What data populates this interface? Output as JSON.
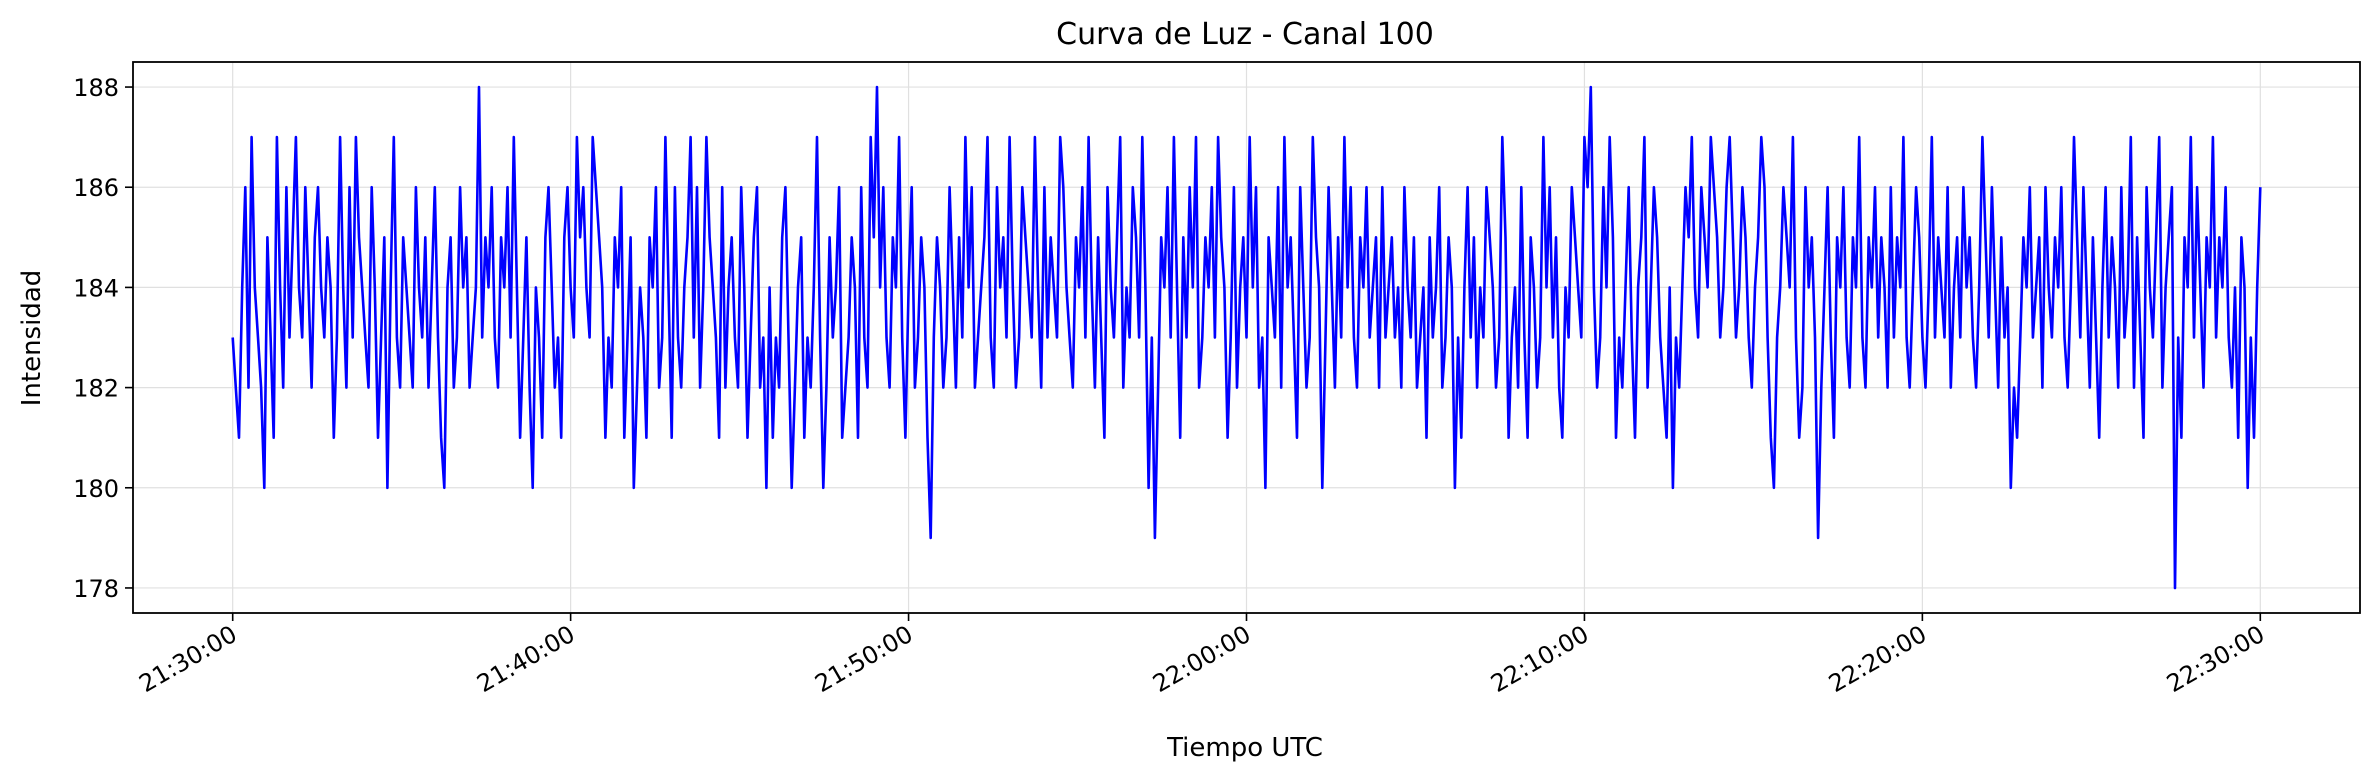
{
  "chart_data": {
    "type": "line",
    "title": "Curva de Luz - Canal 100",
    "xlabel": "Tiempo UTC",
    "ylabel": "Intensidad",
    "x_start": "21:30:00",
    "x_end": "22:30:00",
    "xlim": [
      "21:27:03",
      "22:32:57"
    ],
    "ylim": [
      177.5,
      188.5
    ],
    "x_ticks": [
      "21:30:00",
      "21:40:00",
      "21:50:00",
      "22:00:00",
      "22:10:00",
      "22:20:00",
      "22:30:00"
    ],
    "y_ticks": [
      178,
      180,
      182,
      184,
      186,
      188
    ],
    "grid": true,
    "series": [
      {
        "color": "#0000ff",
        "sample_interval_seconds": 10,
        "values": [
          183,
          182,
          181,
          184,
          186,
          182,
          187,
          184,
          183,
          182,
          180,
          185,
          183,
          181,
          187,
          184,
          182,
          186,
          183,
          185,
          187,
          184,
          183,
          186,
          184,
          182,
          185,
          186,
          184,
          183,
          185,
          184,
          181,
          183,
          187,
          184,
          182,
          186,
          183,
          187,
          185,
          184,
          183,
          182,
          186,
          184,
          181,
          183,
          185,
          180,
          184,
          187,
          183,
          182,
          185,
          184,
          183,
          182,
          186,
          184,
          183,
          185,
          182,
          184,
          186,
          183,
          181,
          180,
          184,
          185,
          182,
          183,
          186,
          184,
          185,
          182,
          183,
          184,
          188,
          183,
          185,
          184,
          186,
          183,
          182,
          185,
          184,
          186,
          183,
          187,
          184,
          181,
          183,
          185,
          182,
          180,
          184,
          183,
          181,
          185,
          186,
          184,
          182,
          183,
          181,
          185,
          186,
          184,
          183,
          187,
          185,
          186,
          184,
          183,
          187,
          186,
          185,
          184,
          181,
          183,
          182,
          185,
          184,
          186,
          181,
          183,
          185,
          180,
          182,
          184,
          183,
          181,
          185,
          184,
          186,
          182,
          183,
          187,
          184,
          181,
          186,
          183,
          182,
          184,
          185,
          187,
          183,
          186,
          182,
          184,
          187,
          185,
          184,
          183,
          181,
          186,
          182,
          184,
          185,
          183,
          182,
          186,
          184,
          181,
          183,
          185,
          186,
          182,
          183,
          180,
          184,
          181,
          183,
          182,
          185,
          186,
          183,
          180,
          182,
          184,
          185,
          181,
          183,
          182,
          184,
          187,
          183,
          180,
          182,
          185,
          183,
          184,
          186,
          181,
          182,
          183,
          185,
          184,
          181,
          186,
          183,
          182,
          187,
          185,
          188,
          184,
          186,
          183,
          182,
          185,
          184,
          187,
          183,
          181,
          184,
          186,
          182,
          183,
          185,
          184,
          181,
          179,
          183,
          185,
          184,
          182,
          183,
          186,
          184,
          182,
          185,
          183,
          187,
          184,
          186,
          182,
          183,
          184,
          185,
          187,
          183,
          182,
          186,
          184,
          185,
          183,
          187,
          184,
          182,
          183,
          186,
          185,
          184,
          183,
          187,
          184,
          182,
          186,
          183,
          185,
          184,
          183,
          187,
          186,
          184,
          183,
          182,
          185,
          184,
          186,
          183,
          187,
          184,
          182,
          185,
          183,
          181,
          186,
          184,
          183,
          185,
          187,
          182,
          184,
          183,
          186,
          185,
          183,
          187,
          184,
          180,
          183,
          179,
          182,
          185,
          184,
          186,
          183,
          187,
          184,
          181,
          185,
          183,
          186,
          184,
          187,
          182,
          183,
          185,
          184,
          186,
          183,
          187,
          185,
          184,
          181,
          183,
          186,
          182,
          184,
          185,
          183,
          187,
          184,
          186,
          182,
          183,
          180,
          185,
          184,
          183,
          186,
          182,
          187,
          184,
          185,
          183,
          181,
          186,
          184,
          182,
          183,
          187,
          185,
          184,
          180,
          183,
          186,
          184,
          182,
          185,
          183,
          187,
          184,
          186,
          183,
          182,
          185,
          184,
          186,
          183,
          184,
          185,
          182,
          186,
          183,
          184,
          185,
          183,
          184,
          182,
          186,
          184,
          183,
          185,
          182,
          183,
          184,
          181,
          185,
          183,
          184,
          186,
          182,
          183,
          185,
          184,
          180,
          183,
          181,
          184,
          186,
          183,
          185,
          182,
          184,
          183,
          186,
          185,
          184,
          182,
          183,
          187,
          185,
          181,
          183,
          184,
          182,
          186,
          183,
          181,
          185,
          184,
          182,
          183,
          187,
          184,
          186,
          183,
          185,
          182,
          181,
          184,
          183,
          186,
          185,
          184,
          183,
          187,
          186,
          188,
          184,
          182,
          183,
          186,
          184,
          187,
          185,
          181,
          183,
          182,
          184,
          186,
          183,
          181,
          184,
          185,
          187,
          182,
          184,
          186,
          185,
          183,
          182,
          181,
          184,
          180,
          183,
          182,
          184,
          186,
          185,
          187,
          184,
          183,
          186,
          185,
          184,
          187,
          186,
          185,
          183,
          184,
          186,
          187,
          185,
          183,
          184,
          186,
          185,
          183,
          182,
          184,
          185,
          187,
          186,
          183,
          181,
          180,
          183,
          184,
          186,
          185,
          184,
          187,
          183,
          181,
          182,
          186,
          184,
          185,
          183,
          179,
          182,
          184,
          186,
          183,
          181,
          185,
          184,
          186,
          183,
          182,
          185,
          184,
          187,
          183,
          182,
          185,
          184,
          186,
          183,
          185,
          184,
          182,
          186,
          183,
          185,
          184,
          187,
          183,
          182,
          184,
          186,
          185,
          183,
          182,
          184,
          187,
          183,
          185,
          184,
          183,
          186,
          182,
          184,
          185,
          183,
          186,
          184,
          185,
          183,
          182,
          184,
          187,
          185,
          183,
          186,
          184,
          182,
          185,
          183,
          184,
          180,
          182,
          181,
          183,
          185,
          184,
          186,
          183,
          184,
          185,
          182,
          186,
          184,
          183,
          185,
          184,
          186,
          183,
          182,
          184,
          187,
          185,
          183,
          186,
          184,
          182,
          185,
          183,
          181,
          184,
          186,
          183,
          185,
          184,
          182,
          186,
          183,
          184,
          187,
          182,
          185,
          183,
          181,
          186,
          184,
          183,
          185,
          187,
          182,
          184,
          185,
          186,
          178,
          183,
          181,
          185,
          184,
          187,
          183,
          186,
          184,
          182,
          185,
          184,
          187,
          183,
          185,
          184,
          186,
          183,
          182,
          184,
          181,
          185,
          184,
          180,
          183,
          181,
          184,
          186
        ]
      }
    ]
  }
}
